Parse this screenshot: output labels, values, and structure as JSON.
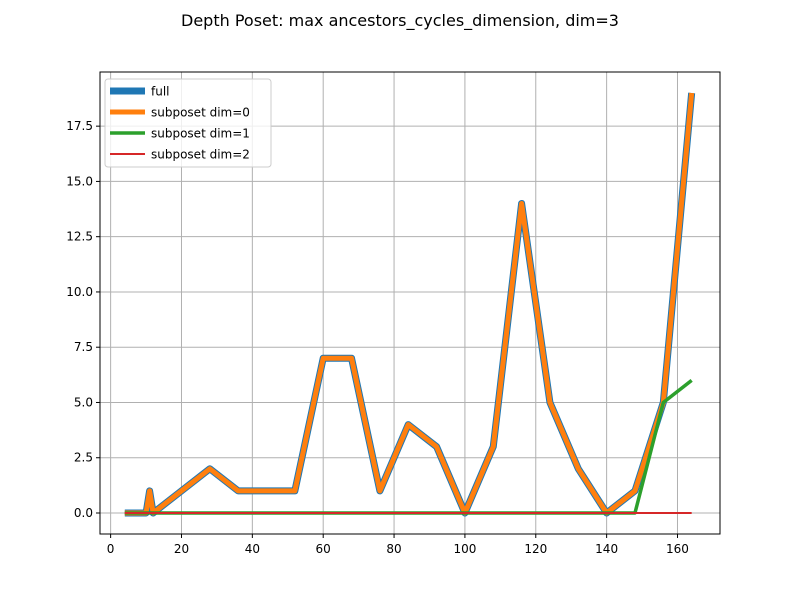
{
  "chart_data": {
    "type": "line",
    "title": "Depth Poset: max ancestors_cycles_dimension, dim=3",
    "xlabel": "",
    "ylabel": "",
    "xlim": [
      -3,
      172
    ],
    "ylim": [
      -0.95,
      19.95
    ],
    "xticks": [
      0,
      20,
      40,
      60,
      80,
      100,
      120,
      140,
      160
    ],
    "yticks": [
      0.0,
      2.5,
      5.0,
      7.5,
      10.0,
      12.5,
      15.0,
      17.5
    ],
    "ytick_labels": [
      "0.0",
      "2.5",
      "5.0",
      "7.5",
      "10.0",
      "12.5",
      "15.0",
      "17.5"
    ],
    "grid": true,
    "legend_position": "top-left",
    "series": [
      {
        "name": "full",
        "color": "#1f77b4",
        "x": [
          4,
          10,
          11,
          12,
          20,
          28,
          36,
          44,
          52,
          60,
          68,
          76,
          84,
          92,
          100,
          108,
          116,
          124,
          132,
          140,
          148,
          156,
          164
        ],
        "y": [
          0,
          0,
          1,
          0,
          1,
          2,
          1,
          1,
          1,
          7,
          7,
          1,
          4,
          3,
          0,
          3,
          14,
          5,
          2,
          0,
          1,
          5,
          19
        ]
      },
      {
        "name": "subposet dim=0",
        "color": "#ff7f0e",
        "x": [
          4,
          10,
          11,
          12,
          20,
          28,
          36,
          44,
          52,
          60,
          68,
          76,
          84,
          92,
          100,
          108,
          116,
          124,
          132,
          140,
          148,
          156,
          164
        ],
        "y": [
          0,
          0,
          1,
          0,
          1,
          2,
          1,
          1,
          1,
          7,
          7,
          1,
          4,
          3,
          0,
          3,
          14,
          5,
          2,
          0,
          1,
          5,
          19
        ]
      },
      {
        "name": "subposet dim=1",
        "color": "#2ca02c",
        "x": [
          4,
          148,
          156,
          164
        ],
        "y": [
          0,
          0,
          5,
          6
        ]
      },
      {
        "name": "subposet dim=2",
        "color": "#d62728",
        "x": [
          4,
          164
        ],
        "y": [
          0,
          0
        ]
      }
    ]
  }
}
